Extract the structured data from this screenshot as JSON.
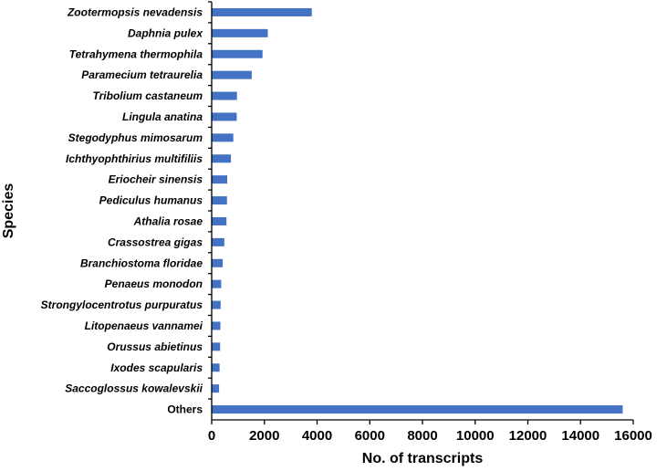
{
  "chart_data": {
    "type": "bar",
    "orientation": "horizontal",
    "title": "",
    "xlabel": "No. of transcripts",
    "ylabel": "Species",
    "xlim": [
      0,
      16000
    ],
    "xticks": [
      0,
      2000,
      4000,
      6000,
      8000,
      10000,
      12000,
      14000,
      16000
    ],
    "grid": false,
    "bar_color": "#4472C4",
    "categories": [
      "Zootermopsis nevadensis",
      "Daphnia pulex",
      "Tetrahymena thermophila",
      "Paramecium tetraurelia",
      "Tribolium castaneum",
      "Lingula anatina",
      "Stegodyphus mimosarum",
      "Ichthyophthirius multifiliis",
      "Eriocheir sinensis",
      "Pediculus humanus",
      "Athalia rosae",
      "Crassostrea gigas",
      "Branchiostoma floridae",
      "Penaeus monodon",
      "Strongylocentrotus purpuratus",
      "Litopenaeus vannamei",
      "Orussus abietinus",
      "Ixodes scapularis",
      "Saccoglossus kowalevskii",
      "Others"
    ],
    "values": [
      3800,
      2130,
      1930,
      1520,
      960,
      950,
      820,
      730,
      590,
      580,
      560,
      480,
      420,
      360,
      340,
      330,
      320,
      300,
      280,
      15600
    ]
  }
}
